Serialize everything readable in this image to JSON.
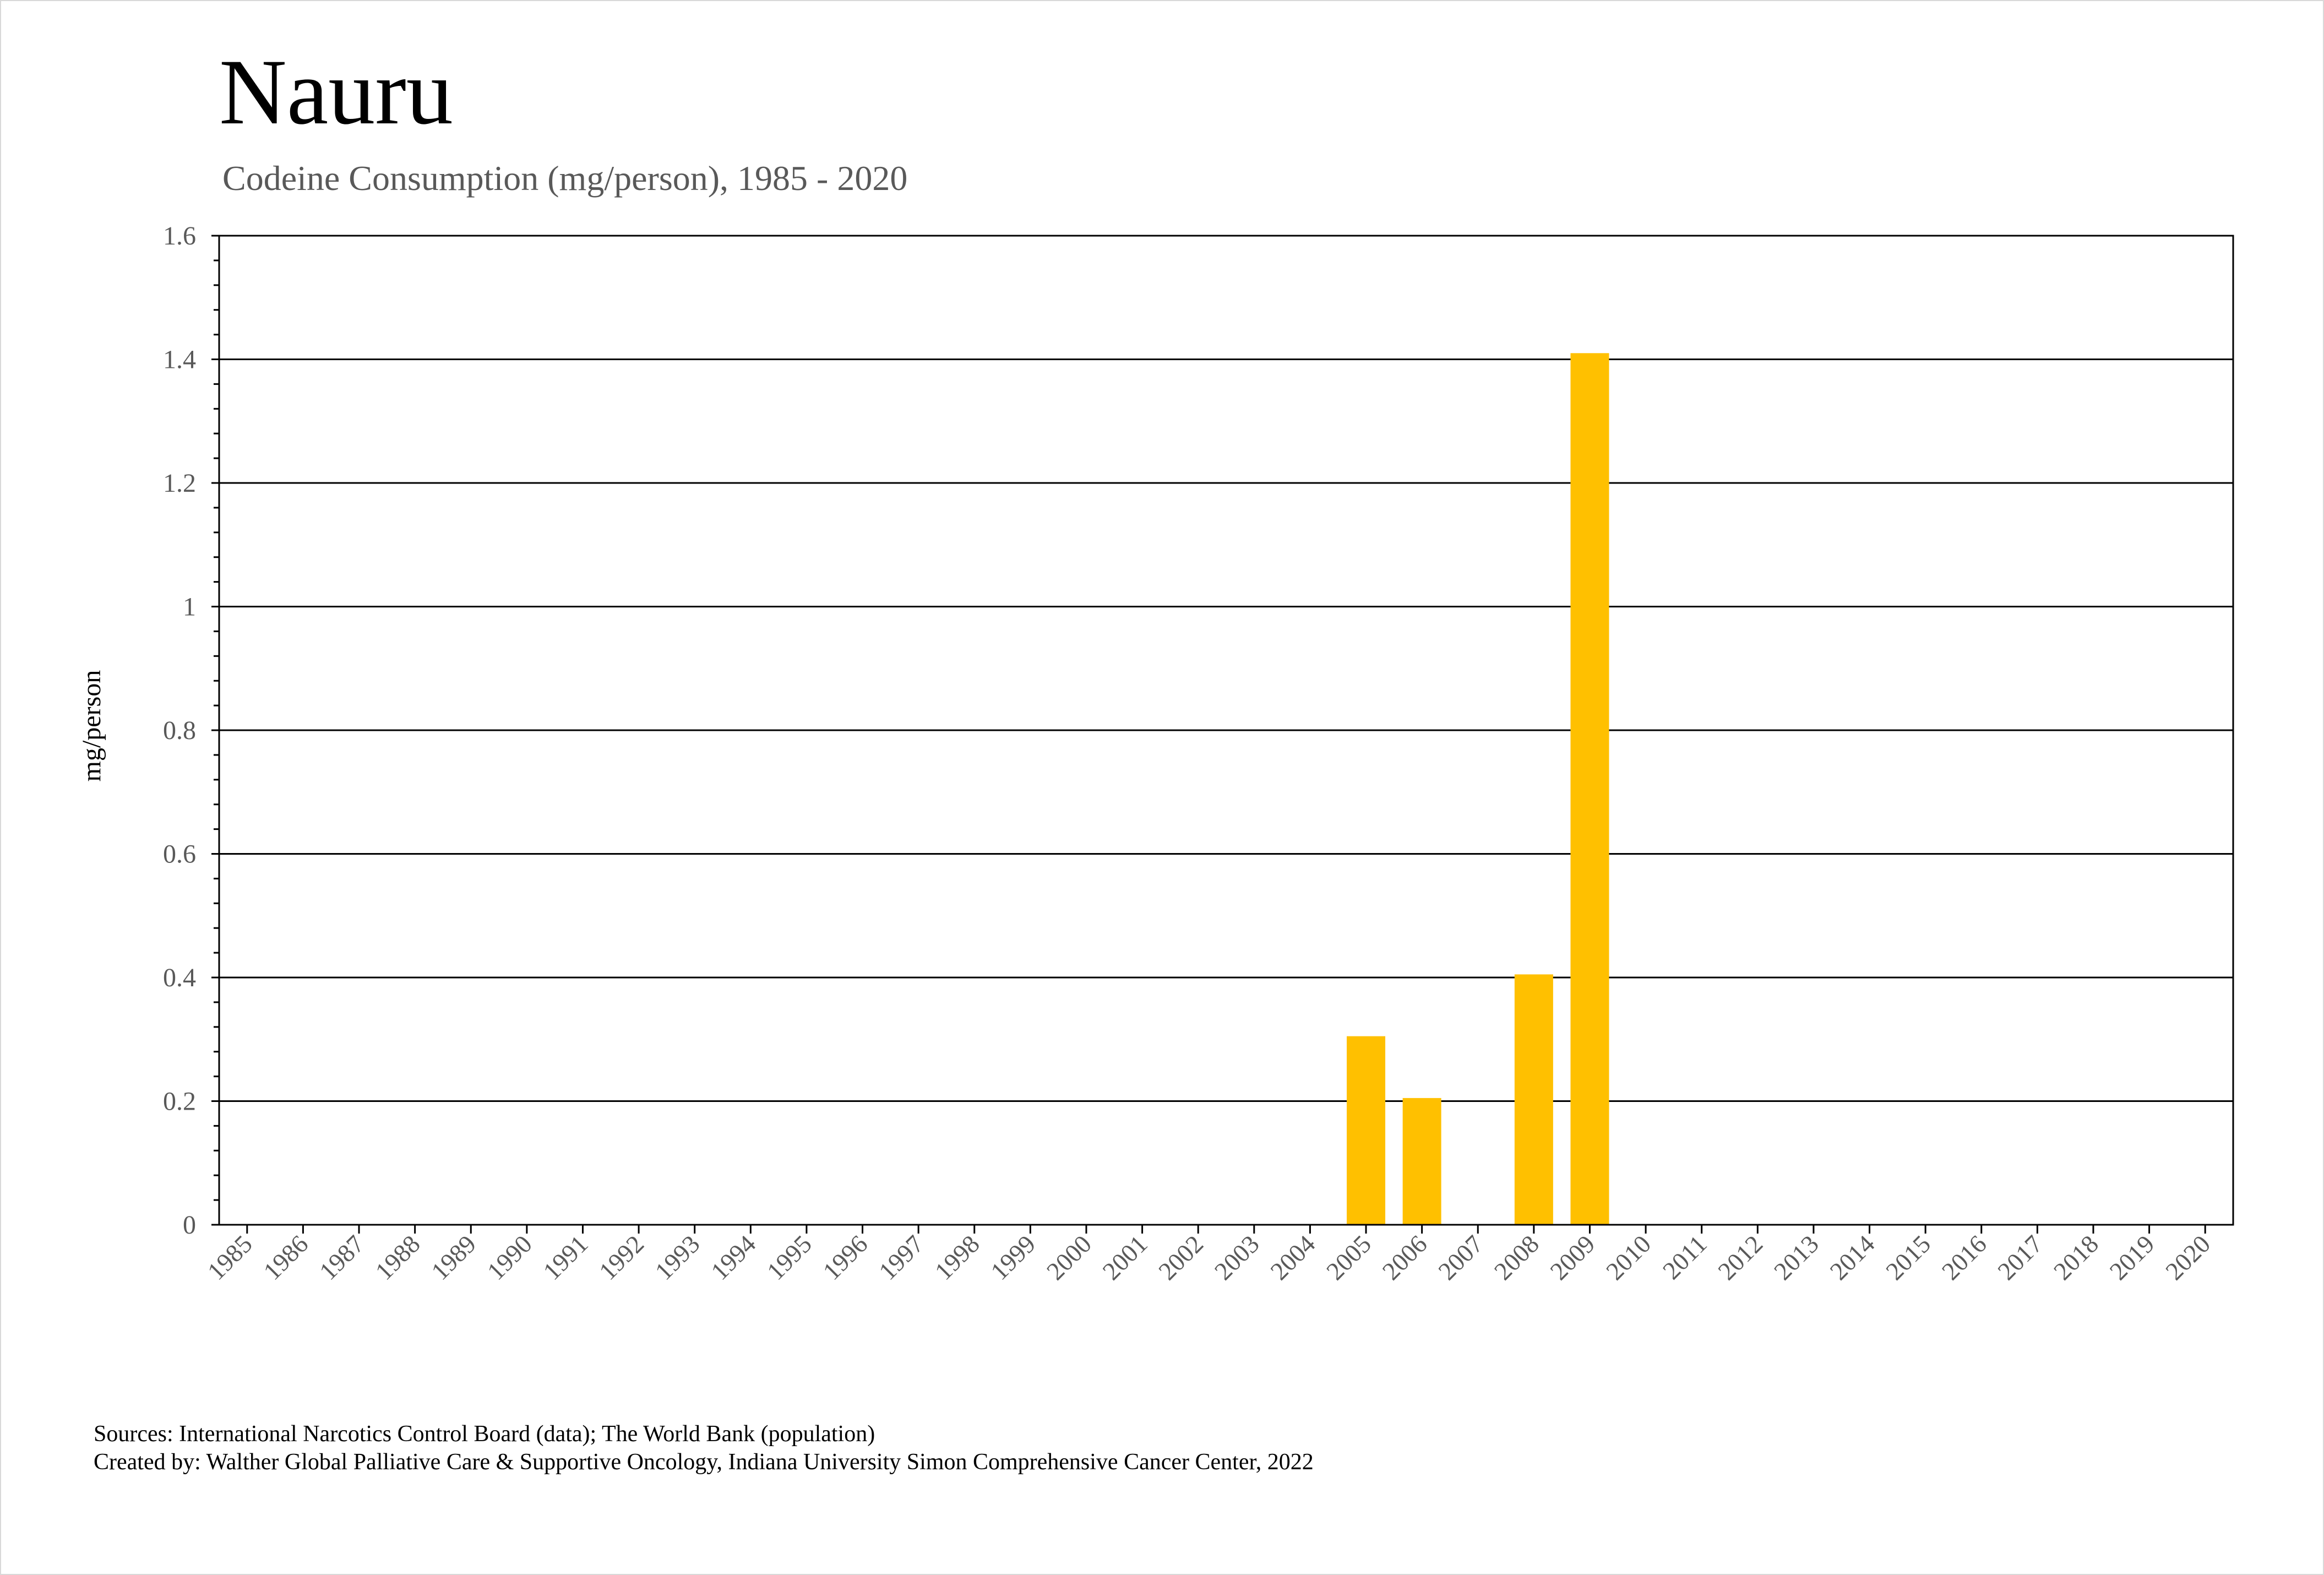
{
  "title": "Nauru",
  "subtitle": "Codeine Consumption (mg/person), 1985 - 2020",
  "footer": {
    "sources": "Sources: International Narcotics Control Board (data); The World Bank (population)",
    "created_by": "Created by: Walther Global Palliative Care & Supportive Oncology, Indiana University Simon Comprehensive Cancer Center, 2022"
  },
  "colors": {
    "bar": "#FFC000",
    "title": "#000000",
    "subtitle": "#595959",
    "axis_text": "#595959",
    "gridline": "#000000"
  },
  "chart_data": {
    "type": "bar",
    "title": "Nauru",
    "subtitle": "Codeine Consumption (mg/person), 1985 - 2020",
    "xlabel": "",
    "ylabel": "mg/person",
    "ylim": [
      0,
      1.6
    ],
    "yticks": [
      "0",
      "0.2",
      "0.4",
      "0.6",
      "0.8",
      "1",
      "1.2",
      "1.4",
      "1.6"
    ],
    "grid": true,
    "legend": "none",
    "categories": [
      "1985",
      "1986",
      "1987",
      "1988",
      "1989",
      "1990",
      "1991",
      "1992",
      "1993",
      "1994",
      "1995",
      "1996",
      "1997",
      "1998",
      "1999",
      "2000",
      "2001",
      "2002",
      "2003",
      "2004",
      "2005",
      "2006",
      "2007",
      "2008",
      "2009",
      "2010",
      "2011",
      "2012",
      "2013",
      "2014",
      "2015",
      "2016",
      "2017",
      "2018",
      "2019",
      "2020"
    ],
    "values": [
      0,
      0,
      0,
      0,
      0,
      0,
      0,
      0,
      0,
      0,
      0,
      0,
      0,
      0,
      0,
      0,
      0,
      0,
      0,
      0,
      0.305,
      0.205,
      0,
      0.405,
      1.41,
      0,
      0,
      0,
      0,
      0,
      0,
      0,
      0,
      0,
      0,
      0
    ]
  }
}
